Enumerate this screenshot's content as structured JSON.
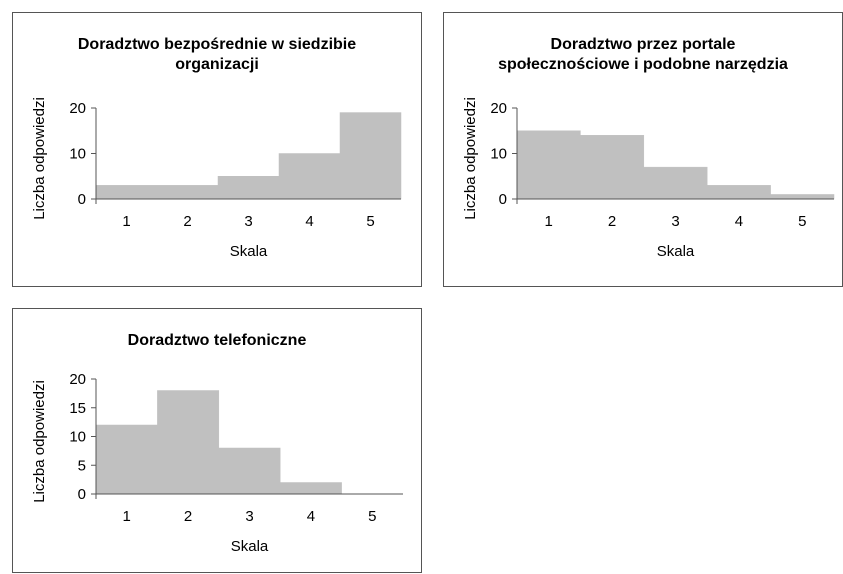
{
  "chart_data": [
    {
      "type": "bar",
      "title": [
        "Doradztwo bezpośrednie w siedzibie",
        "organizacji"
      ],
      "categories": [
        "1",
        "2",
        "3",
        "4",
        "5"
      ],
      "values": [
        3,
        3,
        5,
        10,
        19
      ],
      "xlabel": "Skala",
      "ylabel": "Liczba odpowiedzi",
      "ylim": [
        0,
        20
      ],
      "yticks": [
        "0",
        "10",
        "20"
      ],
      "bar_color": "#c0c0c0"
    },
    {
      "type": "bar",
      "title": [
        "Doradztwo przez portale",
        "społecznościowe i podobne narzędzia"
      ],
      "categories": [
        "1",
        "2",
        "3",
        "4",
        "5"
      ],
      "values": [
        15,
        14,
        7,
        3,
        1
      ],
      "xlabel": "Skala",
      "ylabel": "Liczba odpowiedzi",
      "ylim": [
        0,
        20
      ],
      "yticks": [
        "0",
        "10",
        "20"
      ],
      "bar_color": "#c0c0c0"
    },
    {
      "type": "bar",
      "title": [
        "Doradztwo telefoniczne"
      ],
      "categories": [
        "1",
        "2",
        "3",
        "4",
        "5"
      ],
      "values": [
        12,
        18,
        8,
        2,
        0
      ],
      "xlabel": "Skala",
      "ylabel": "Liczba odpowiedzi",
      "ylim": [
        0,
        20
      ],
      "yticks": [
        "0",
        "5",
        "10",
        "15",
        "20"
      ],
      "bar_color": "#c0c0c0"
    }
  ]
}
